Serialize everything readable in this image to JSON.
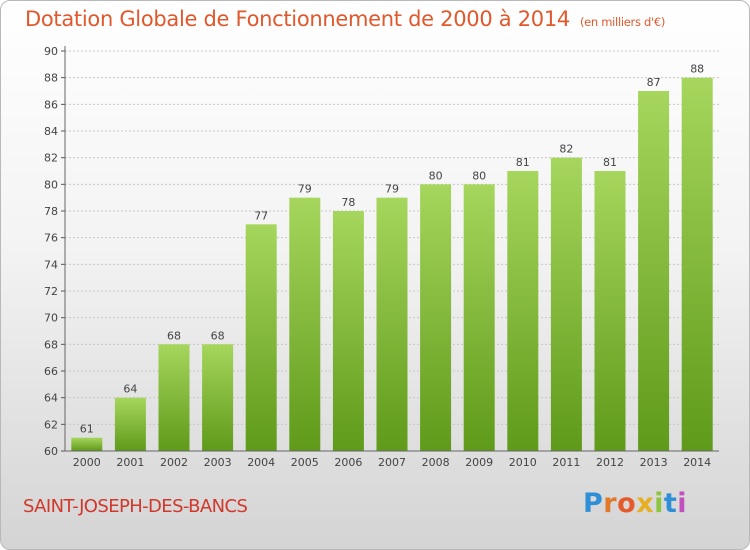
{
  "header": {
    "title": "Dotation Globale de Fonctionnement de 2000 à 2014",
    "unit": "(en milliers d'€)"
  },
  "footer": {
    "commune": "SAINT-JOSEPH-DES-BANCS",
    "logo_text": "Proxiti"
  },
  "colors": {
    "title": "#e0582c",
    "bar_top": "#a6d65d",
    "bar_bottom": "#5f9a1a",
    "commune": "#d1372b",
    "logo": [
      "#2f8fd6",
      "#e07a2a",
      "#e45a2a",
      "#e6b020",
      "#8cc63f",
      "#2f8fd6",
      "#c24fbf"
    ]
  },
  "chart_data": {
    "type": "bar",
    "title": "Dotation Globale de Fonctionnement de 2000 à 2014",
    "subtitle": "(en milliers d'€)",
    "xlabel": "",
    "ylabel": "",
    "categories": [
      "2000",
      "2001",
      "2002",
      "2003",
      "2004",
      "2005",
      "2006",
      "2007",
      "2008",
      "2009",
      "2010",
      "2011",
      "2012",
      "2013",
      "2014"
    ],
    "values": [
      61,
      64,
      68,
      68,
      77,
      79,
      78,
      79,
      80,
      80,
      81,
      82,
      81,
      87,
      88
    ],
    "ylim": [
      60,
      90
    ],
    "yticks": [
      60,
      62,
      64,
      66,
      68,
      70,
      72,
      74,
      76,
      78,
      80,
      82,
      84,
      86,
      88,
      90
    ],
    "grid": true,
    "legend": "none",
    "data_labels": true
  }
}
